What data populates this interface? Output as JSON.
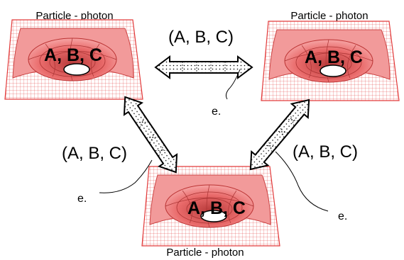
{
  "nodes": [
    {
      "title": "Particle - photon",
      "core_label": "A, B, C"
    },
    {
      "title": "Particle - photon",
      "core_label": "A, B, C"
    },
    {
      "title": "Particle - photon",
      "core_label": "A, B, C"
    }
  ],
  "links": [
    {
      "label": "(A, B, C)",
      "marker": "e."
    },
    {
      "label": "(A, B, C)",
      "marker": "e."
    },
    {
      "label": "(A, B, C)",
      "marker": "e."
    }
  ],
  "colors": {
    "sheet_border": "#e23a3a",
    "surface_fill": "#f08a8a",
    "well_fill": "#e86c6c",
    "arrow_stroke": "#000000"
  }
}
